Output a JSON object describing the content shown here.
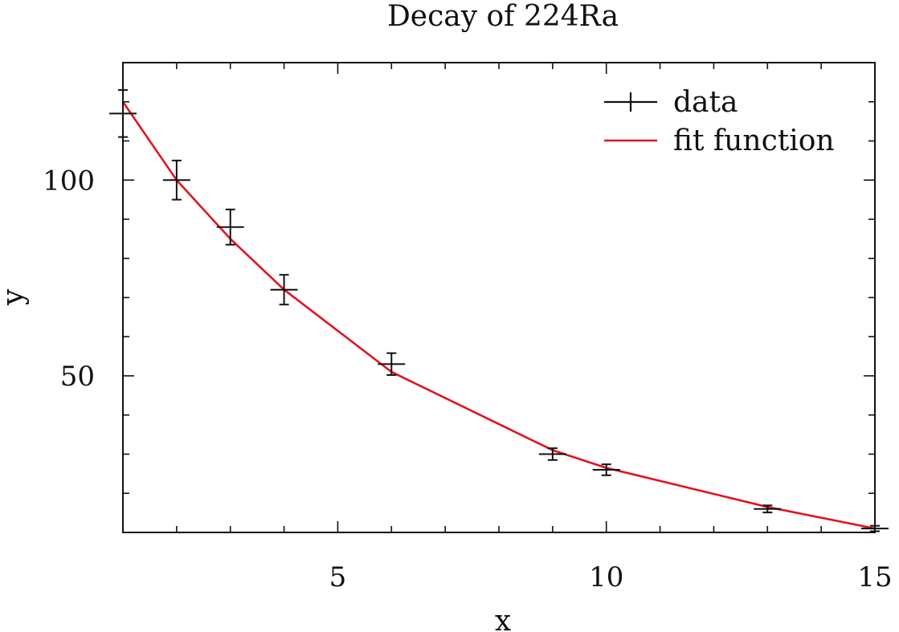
{
  "chart_data": {
    "type": "scatter",
    "title": "Decay of 224Ra",
    "xlabel": "x",
    "ylabel": "y",
    "xlim": [
      1,
      15
    ],
    "ylim": [
      10,
      130
    ],
    "x_ticks": [
      "5",
      "10",
      "15"
    ],
    "y_ticks": [
      "50",
      "100"
    ],
    "legend_position": "top-right",
    "grid": false,
    "series": [
      {
        "name": "data",
        "kind": "errorbar",
        "color": "#111111",
        "x": [
          1,
          2,
          3,
          4,
          6,
          9,
          10,
          13,
          15
        ],
        "y": [
          117,
          100,
          88,
          72,
          53,
          30,
          26,
          16,
          11
        ],
        "yerr": [
          6,
          5,
          4.5,
          3.8,
          2.8,
          1.5,
          1.4,
          0.9,
          0.7
        ]
      },
      {
        "name": "fit function",
        "kind": "line",
        "color": "#e0141e",
        "x": [
          1,
          2,
          3,
          4,
          6,
          9,
          10,
          13,
          15
        ],
        "y": [
          120,
          100,
          85,
          72,
          51,
          31,
          26.5,
          16.5,
          11
        ]
      }
    ]
  }
}
